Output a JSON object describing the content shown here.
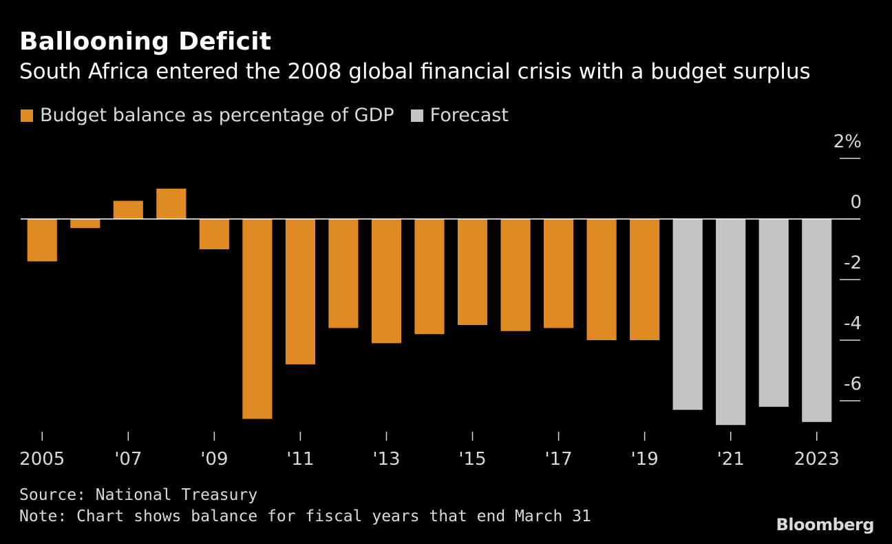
{
  "header": {
    "title": "Ballooning Deficit",
    "subtitle": "South Africa entered the 2008 global financial crisis with a budget surplus"
  },
  "legend": [
    {
      "label": "Budget balance as percentage of GDP",
      "color": "#E08A23"
    },
    {
      "label": "Forecast",
      "color": "#C4C4C4"
    }
  ],
  "footer": {
    "source": "Source: National Treasury",
    "note": "Note: Chart shows balance for fiscal years that end March 31",
    "logo": "Bloomberg"
  },
  "chart_data": {
    "type": "bar",
    "categories": [
      "2005",
      "2006",
      "2007",
      "2008",
      "2009",
      "2010",
      "2011",
      "2012",
      "2013",
      "2014",
      "2015",
      "2016",
      "2017",
      "2018",
      "2019",
      "2020",
      "2021",
      "2022",
      "2023"
    ],
    "series": [
      {
        "name": "Budget balance as percentage of GDP",
        "color": "#E08A23",
        "values": [
          -1.4,
          -0.3,
          0.6,
          1.0,
          -1.0,
          -6.6,
          -4.8,
          -3.6,
          -4.1,
          -3.8,
          -3.5,
          -3.7,
          -3.6,
          -4.0,
          -4.0,
          null,
          null,
          null,
          null
        ]
      },
      {
        "name": "Forecast",
        "color": "#C4C4C4",
        "values": [
          null,
          null,
          null,
          null,
          null,
          null,
          null,
          null,
          null,
          null,
          null,
          null,
          null,
          null,
          null,
          -6.3,
          -6.8,
          -6.2,
          -6.7
        ]
      }
    ],
    "x_tick_labels": [
      "2005",
      "'07",
      "'09",
      "'11",
      "'13",
      "'15",
      "'17",
      "'19",
      "'21",
      "2023"
    ],
    "x_tick_categories": [
      "2005",
      "2007",
      "2009",
      "2011",
      "2013",
      "2015",
      "2017",
      "2019",
      "2021",
      "2023"
    ],
    "y_ticks": [
      2,
      0,
      -2,
      -4,
      -6
    ],
    "y_tick_labels": [
      "2%",
      "0",
      "-2",
      "-4",
      "-6"
    ],
    "ylim": [
      -7,
      2.4
    ],
    "xlabel": "",
    "ylabel": ""
  }
}
